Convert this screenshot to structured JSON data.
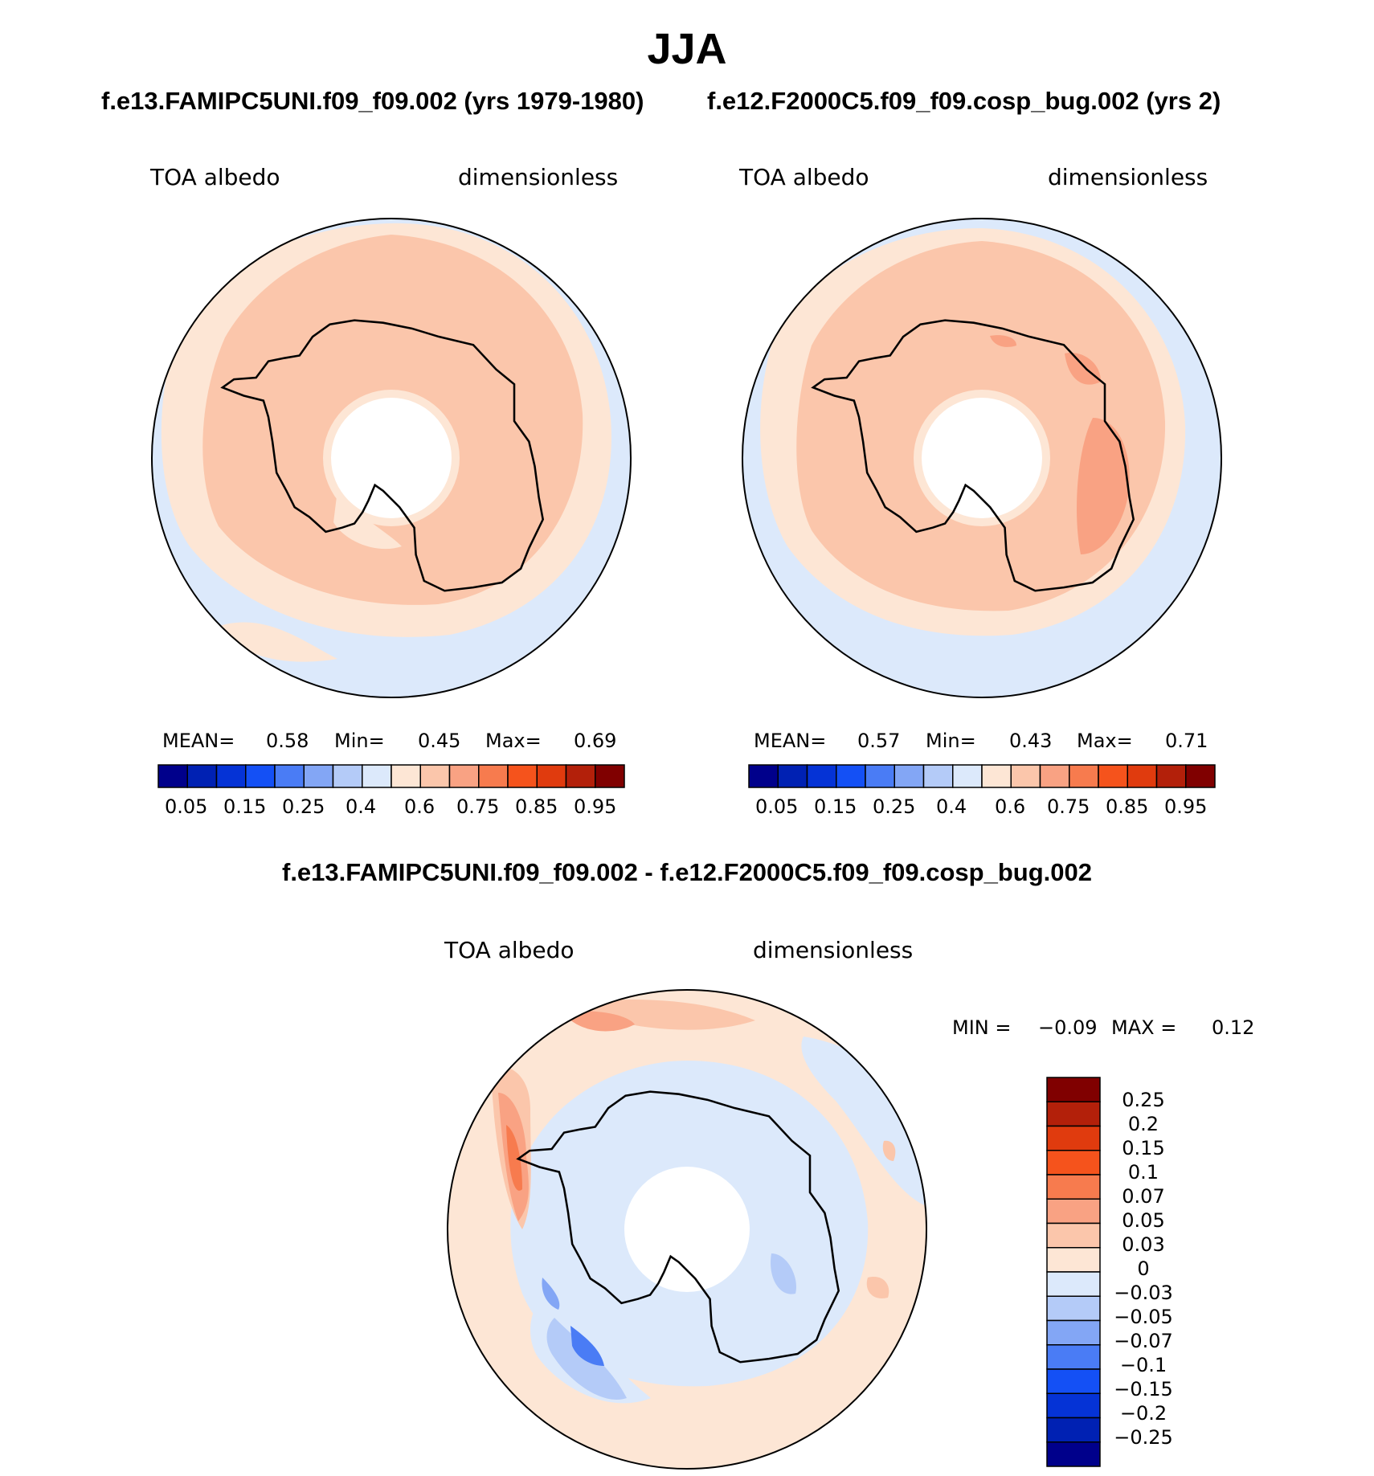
{
  "figure": {
    "title": "JJA",
    "subtitle_left": "f.e13.FAMIPC5UNI.f09_f09.002 (yrs 1979-1980)",
    "subtitle_right": "f.e12.F2000C5.f09_f09.cosp_bug.002 (yrs 2)",
    "diff_title": "f.e13.FAMIPC5UNI.f09_f09.002 - f.e12.F2000C5.f09_f09.cosp_bug.002"
  },
  "panels": {
    "left": {
      "variable": "TOA albedo",
      "units": "dimensionless",
      "mean_label": "MEAN=",
      "mean": "0.58",
      "min_label": "Min=",
      "min": "0.45",
      "max_label": "Max=",
      "max": "0.69"
    },
    "right": {
      "variable": "TOA albedo",
      "units": "dimensionless",
      "mean_label": "MEAN=",
      "mean": "0.57",
      "min_label": "Min=",
      "min": "0.43",
      "max_label": "Max=",
      "max": "0.71"
    },
    "diff": {
      "variable": "TOA albedo",
      "units": "dimensionless",
      "min_label": "MIN =",
      "min": "−0.09",
      "max_label": "MAX =",
      "max": "0.12"
    }
  },
  "chart_data": [
    {
      "type": "heatmap",
      "projection": "south polar stereographic",
      "title": "f.e13.FAMIPC5UNI.f09_f09.002 (yrs 1979-1980)",
      "variable": "TOA albedo",
      "units": "dimensionless",
      "mean": 0.58,
      "min": 0.45,
      "max": 0.69,
      "colorbar": {
        "levels": [
          0.05,
          0.1,
          0.15,
          0.2,
          0.25,
          0.3,
          0.4,
          0.5,
          0.6,
          0.7,
          0.75,
          0.8,
          0.85,
          0.9,
          0.95
        ],
        "tick_labels": [
          "0.05",
          "0.15",
          "0.25",
          "0.4",
          "0.6",
          "0.75",
          "0.85",
          "0.95"
        ],
        "colors": [
          "#00008b",
          "#0021b3",
          "#0533d6",
          "#1450f5",
          "#4a7cf5",
          "#83a6f5",
          "#b4cbf8",
          "#dce9fb",
          "#fde6d5",
          "#fbc6ab",
          "#f9a283",
          "#f77b4e",
          "#f5531c",
          "#e03b0e",
          "#b3200a",
          "#800000"
        ]
      }
    },
    {
      "type": "heatmap",
      "projection": "south polar stereographic",
      "title": "f.e12.F2000C5.f09_f09.cosp_bug.002 (yrs 2)",
      "variable": "TOA albedo",
      "units": "dimensionless",
      "mean": 0.57,
      "min": 0.43,
      "max": 0.71,
      "colorbar": {
        "levels": [
          0.05,
          0.1,
          0.15,
          0.2,
          0.25,
          0.3,
          0.4,
          0.5,
          0.6,
          0.7,
          0.75,
          0.8,
          0.85,
          0.9,
          0.95
        ],
        "tick_labels": [
          "0.05",
          "0.15",
          "0.25",
          "0.4",
          "0.6",
          "0.75",
          "0.85",
          "0.95"
        ],
        "colors": [
          "#00008b",
          "#0021b3",
          "#0533d6",
          "#1450f5",
          "#4a7cf5",
          "#83a6f5",
          "#b4cbf8",
          "#dce9fb",
          "#fde6d5",
          "#fbc6ab",
          "#f9a283",
          "#f77b4e",
          "#f5531c",
          "#e03b0e",
          "#b3200a",
          "#800000"
        ]
      }
    },
    {
      "type": "heatmap",
      "projection": "south polar stereographic",
      "title": "f.e13.FAMIPC5UNI.f09_f09.002 - f.e12.F2000C5.f09_f09.cosp_bug.002",
      "variable": "TOA albedo",
      "units": "dimensionless",
      "min": -0.09,
      "max": 0.12,
      "colorbar": {
        "orientation": "vertical",
        "tick_labels": [
          "0.25",
          "0.2",
          "0.15",
          "0.1",
          "0.07",
          "0.05",
          "0.03",
          "0",
          "−0.03",
          "−0.05",
          "−0.07",
          "−0.1",
          "−0.15",
          "−0.2",
          "−0.25"
        ],
        "colors": [
          "#800000",
          "#b3200a",
          "#e03b0e",
          "#f5531c",
          "#f77b4e",
          "#f9a283",
          "#fbc6ab",
          "#fde6d5",
          "#dce9fb",
          "#b4cbf8",
          "#83a6f5",
          "#4a7cf5",
          "#1450f5",
          "#0533d6",
          "#0021b3",
          "#00008b"
        ]
      }
    }
  ]
}
